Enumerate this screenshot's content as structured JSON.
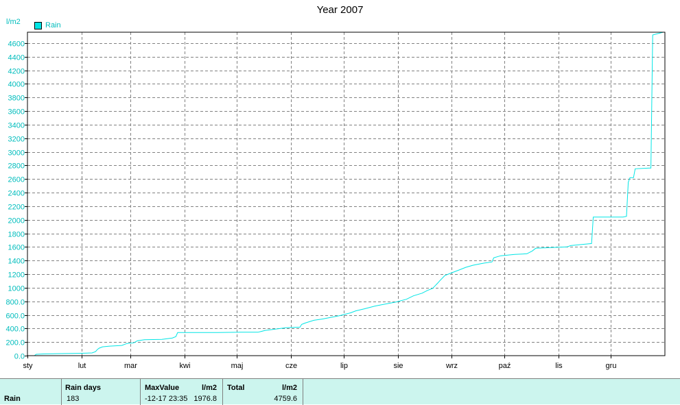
{
  "chart_data": {
    "type": "line",
    "title": "Year 2007",
    "ylabel": "l/m2",
    "xlabel": "",
    "series": [
      {
        "name": "Rain",
        "color": "#00e5e5",
        "points": [
          [
            1,
            0
          ],
          [
            5,
            0
          ],
          [
            6,
            20
          ],
          [
            10,
            25
          ],
          [
            20,
            30
          ],
          [
            32,
            35
          ],
          [
            38,
            40
          ],
          [
            40,
            60
          ],
          [
            41,
            90
          ],
          [
            42,
            110
          ],
          [
            44,
            130
          ],
          [
            48,
            140
          ],
          [
            55,
            150
          ],
          [
            58,
            180
          ],
          [
            62,
            190
          ],
          [
            64,
            220
          ],
          [
            68,
            235
          ],
          [
            78,
            240
          ],
          [
            84,
            260
          ],
          [
            86,
            280
          ],
          [
            87,
            340
          ],
          [
            110,
            340
          ],
          [
            123,
            345
          ],
          [
            133,
            345
          ],
          [
            137,
            370
          ],
          [
            143,
            390
          ],
          [
            149,
            410
          ],
          [
            157,
            420
          ],
          [
            158,
            460
          ],
          [
            160,
            480
          ],
          [
            165,
            520
          ],
          [
            170,
            540
          ],
          [
            176,
            570
          ],
          [
            180,
            590
          ],
          [
            186,
            630
          ],
          [
            189,
            660
          ],
          [
            194,
            690
          ],
          [
            200,
            730
          ],
          [
            206,
            760
          ],
          [
            212,
            790
          ],
          [
            218,
            830
          ],
          [
            222,
            880
          ],
          [
            227,
            920
          ],
          [
            230,
            960
          ],
          [
            233,
            990
          ],
          [
            236,
            1070
          ],
          [
            237,
            1100
          ],
          [
            240,
            1180
          ],
          [
            244,
            1220
          ],
          [
            248,
            1260
          ],
          [
            252,
            1300
          ],
          [
            256,
            1330
          ],
          [
            262,
            1360
          ],
          [
            267,
            1380
          ],
          [
            268,
            1440
          ],
          [
            272,
            1470
          ],
          [
            280,
            1490
          ],
          [
            287,
            1500
          ],
          [
            290,
            1540
          ],
          [
            292,
            1580
          ],
          [
            310,
            1600
          ],
          [
            312,
            1620
          ],
          [
            320,
            1640
          ],
          [
            324,
            1650
          ],
          [
            325,
            2040
          ],
          [
            342,
            2040
          ],
          [
            344,
            2050
          ],
          [
            345,
            2550
          ],
          [
            346,
            2620
          ],
          [
            348,
            2620
          ],
          [
            349,
            2750
          ],
          [
            357,
            2760
          ],
          [
            358,
            2760
          ],
          [
            359,
            4720
          ],
          [
            365,
            4759.6
          ]
        ]
      }
    ],
    "x_range": [
      1,
      366
    ],
    "ylim": [
      0,
      4760
    ],
    "yticks": [
      0,
      200,
      400,
      600,
      800,
      1000,
      1200,
      1400,
      1600,
      1800,
      2000,
      2200,
      2400,
      2600,
      2800,
      3000,
      3200,
      3400,
      3600,
      3800,
      4000,
      4200,
      4400,
      4600
    ],
    "ytick_labels": [
      "0.0",
      "200.0",
      "400.0",
      "600.0",
      "800.0",
      "1000",
      "1200",
      "1400",
      "1600",
      "1800",
      "2000",
      "2200",
      "2400",
      "2600",
      "2800",
      "3000",
      "3200",
      "3400",
      "3600",
      "3800",
      "4000",
      "4200",
      "4400",
      "4600"
    ],
    "xticks": [
      {
        "day": 1,
        "label": "sty"
      },
      {
        "day": 32,
        "label": "lut"
      },
      {
        "day": 60,
        "label": "mar"
      },
      {
        "day": 91,
        "label": "kwi"
      },
      {
        "day": 121,
        "label": "maj"
      },
      {
        "day": 152,
        "label": "cze"
      },
      {
        "day": 182,
        "label": "lip"
      },
      {
        "day": 213,
        "label": "sie"
      },
      {
        "day": 244,
        "label": "wrz"
      },
      {
        "day": 274,
        "label": "paź"
      },
      {
        "day": 305,
        "label": "lis"
      },
      {
        "day": 335,
        "label": "gru"
      }
    ],
    "grid": true,
    "legend_position": "top-left"
  },
  "stats": {
    "row_label": "Rain",
    "rain_days_header": "Rain days",
    "rain_days_value": "183",
    "max_header": "MaxValue",
    "max_unit": "l/m2",
    "max_date": "-12-17  23:35",
    "max_value": "1976.8",
    "total_header": "Total",
    "total_unit": "l/m2",
    "total_value": "4759.6"
  }
}
